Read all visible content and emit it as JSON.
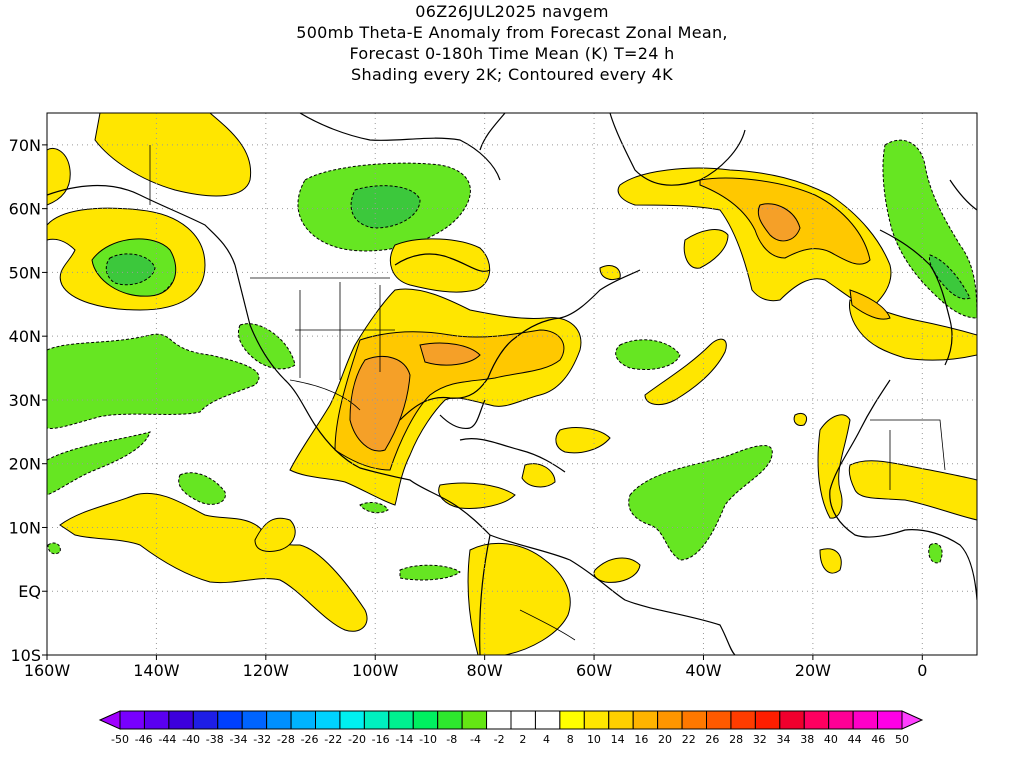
{
  "header": {
    "line1": "06Z26JUL2025 navgem",
    "line2": "500mb Theta-E Anomaly from Forecast Zonal Mean,",
    "line3": "Forecast 0-180h Time Mean (K) T=24 h",
    "line4": "Shading every 2K; Contoured every 4K"
  },
  "axes": {
    "lon_labels": [
      "160W",
      "140W",
      "120W",
      "100W",
      "80W",
      "60W",
      "40W",
      "20W",
      "0"
    ],
    "lon_values": [
      -160,
      -140,
      -120,
      -100,
      -80,
      -60,
      -40,
      -20,
      0
    ],
    "lat_labels": [
      "10S",
      "EQ",
      "10N",
      "20N",
      "30N",
      "40N",
      "50N",
      "60N",
      "70N"
    ],
    "lat_values": [
      -10,
      0,
      10,
      20,
      30,
      40,
      50,
      60,
      70
    ],
    "lon_range": [
      -160,
      10
    ],
    "lat_range": [
      -10,
      75
    ],
    "grid": "dotted"
  },
  "colorbar": {
    "labels": [
      "-50",
      "-46",
      "-44",
      "-40",
      "-38",
      "-34",
      "-32",
      "-28",
      "-26",
      "-22",
      "-20",
      "-16",
      "-14",
      "-10",
      "-8",
      "-4",
      "-2",
      "2",
      "4",
      "8",
      "10",
      "14",
      "16",
      "20",
      "22",
      "26",
      "28",
      "32",
      "34",
      "38",
      "40",
      "44",
      "46",
      "50"
    ],
    "colors": [
      "#a000ff",
      "#7800ff",
      "#5a00f0",
      "#3c00dc",
      "#1e1ee6",
      "#0040ff",
      "#0064ff",
      "#0090ff",
      "#00b4ff",
      "#00d2ff",
      "#00f0f0",
      "#00f0c0",
      "#00f090",
      "#00f060",
      "#2ee82e",
      "#64e614",
      "#ffffff",
      "#ffffff",
      "#ffffff",
      "#ffff00",
      "#ffe600",
      "#ffd000",
      "#ffb400",
      "#ff9600",
      "#ff7800",
      "#ff5a00",
      "#ff3c00",
      "#ff1e00",
      "#f0002d",
      "#ff0060",
      "#ff0096",
      "#ff00c8",
      "#ff00e6",
      "#ff40ff"
    ]
  },
  "field": {
    "units": "K",
    "legend_colors": {
      "green": "#66e622",
      "yellow": "#ffe600",
      "gold": "#ffc800",
      "orange": "#f5a028"
    }
  }
}
